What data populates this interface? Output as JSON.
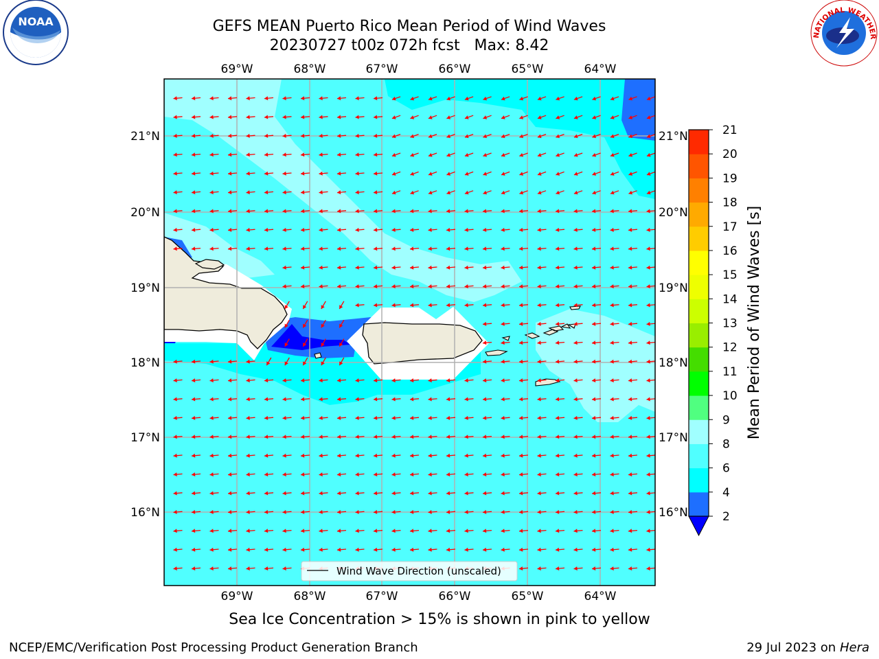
{
  "title": {
    "line1": "GEFS MEAN Puerto Rico Mean Period of Wind Waves",
    "line2": "20230727 t00z 072h fcst   Max: 8.42"
  },
  "subtitle": "Sea Ice Concentration > 15% is shown in pink to yellow",
  "footer": {
    "left": "NCEP/EMC/Verification Post Processing Product Generation Branch",
    "date": "29 Jul 2023 on ",
    "system": "Hera"
  },
  "logos": {
    "noaa": {
      "text": "NOAA",
      "icon": "noaa-logo"
    },
    "nws": {
      "text": "NATIONAL WEATHER SERVICE",
      "icon": "nws-logo"
    }
  },
  "map": {
    "lon_labels": [
      "69°W",
      "68°W",
      "67°W",
      "66°W",
      "65°W",
      "64°W"
    ],
    "lat_labels": [
      "21°N",
      "20°N",
      "19°N",
      "18°N",
      "17°N",
      "16°N"
    ],
    "legend_label": "Wind Wave Direction (unscaled)",
    "arrow_color": "#ff0000",
    "land_color": "#efecdc"
  },
  "colorbar": {
    "label": "Mean Period of Wind Waves [s]",
    "ticks": [
      "2",
      "4",
      "6",
      "8",
      "9",
      "10",
      "11",
      "12",
      "13",
      "14",
      "15",
      "16",
      "17",
      "18",
      "19",
      "20",
      "21"
    ],
    "colors": [
      "#0000ff",
      "#1e6fff",
      "#00ffff",
      "#50ffff",
      "#a0ffff",
      "#50ff80",
      "#00ff00",
      "#44dd00",
      "#99ee00",
      "#ccff00",
      "#eeff00",
      "#ffff00",
      "#ffcc00",
      "#ffaa00",
      "#ff8000",
      "#ff5500",
      "#ff2a00",
      "#ff0000"
    ]
  }
}
